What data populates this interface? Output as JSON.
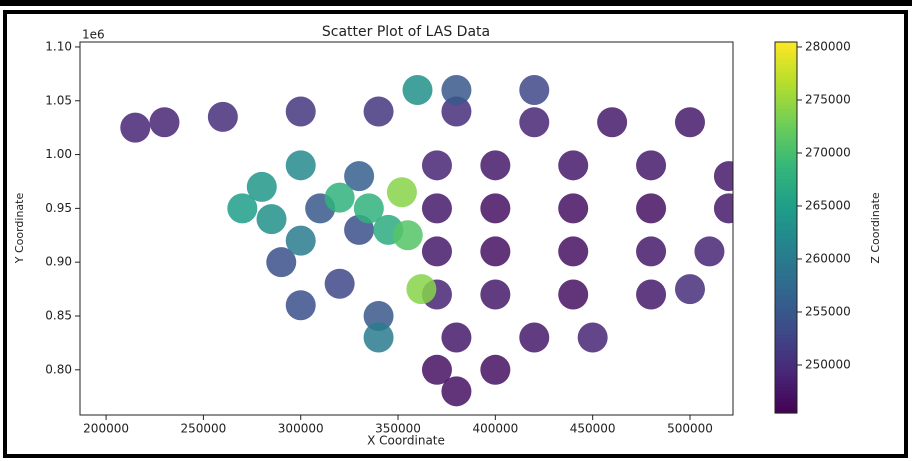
{
  "chart_data": {
    "type": "scatter",
    "title": "Scatter Plot of LAS Data",
    "x_label": "X Coordinate",
    "y_label": "Y Coordinate",
    "y_offset_label": "1e6",
    "colorbar_label": "Z Coordinate",
    "colormap": "viridis",
    "x": [
      420000,
      460000,
      500000,
      380000,
      340000,
      300000,
      260000,
      230000,
      215000,
      400000,
      440000,
      480000,
      520000,
      370000,
      400000,
      440000,
      480000,
      520000,
      370000,
      400000,
      440000,
      480000,
      510000,
      370000,
      400000,
      440000,
      480000,
      370000,
      500000,
      380000,
      420000,
      450000,
      370000,
      400000,
      380000,
      330000,
      320000,
      300000,
      340000,
      330000,
      310000,
      290000,
      380000,
      420000,
      300000,
      280000,
      270000,
      300000,
      285000,
      360000,
      340000,
      320000,
      335000,
      345000,
      352000,
      362000,
      355000
    ],
    "y": [
      1.03,
      1.03,
      1.03,
      1.04,
      1.04,
      1.04,
      1.035,
      1.03,
      1.025,
      0.99,
      0.99,
      0.99,
      0.98,
      0.99,
      0.95,
      0.95,
      0.95,
      0.95,
      0.95,
      0.91,
      0.91,
      0.91,
      0.91,
      0.91,
      0.87,
      0.87,
      0.87,
      0.87,
      0.875,
      0.83,
      0.83,
      0.83,
      0.8,
      0.8,
      0.78,
      0.93,
      0.88,
      0.86,
      0.85,
      0.98,
      0.95,
      0.9,
      1.06,
      1.06,
      0.99,
      0.97,
      0.95,
      0.92,
      0.94,
      1.06,
      0.83,
      0.96,
      0.95,
      0.93,
      0.965,
      0.875,
      0.925
    ],
    "z": [
      249000,
      248000,
      248000,
      250000,
      251000,
      251000,
      250000,
      249000,
      249000,
      248000,
      248000,
      248000,
      248000,
      249000,
      247000,
      247000,
      247000,
      248000,
      248000,
      247000,
      247000,
      248000,
      249000,
      248000,
      248000,
      247000,
      248000,
      249000,
      250000,
      248000,
      248000,
      249000,
      247000,
      247000,
      247000,
      254000,
      253000,
      254000,
      255000,
      256000,
      255000,
      254000,
      255000,
      253000,
      262000,
      264000,
      265000,
      260000,
      263000,
      263000,
      260000,
      268000,
      268000,
      267000,
      274000,
      274000,
      271000
    ],
    "xlim": [
      186600,
      522100
    ],
    "xticks": [
      200000,
      250000,
      300000,
      350000,
      400000,
      450000,
      500000
    ],
    "ylim": [
      0.758,
      1.1046
    ],
    "yticks": [
      {
        "value": 0.8,
        "label": "0.80"
      },
      0.85,
      {
        "value": 0.9,
        "label": "0.90"
      },
      0.95,
      {
        "value": 1.0,
        "label": "1.00"
      },
      1.05,
      {
        "value": 1.1,
        "label": "1.10"
      }
    ],
    "zlim": [
      245470,
      280470
    ],
    "zticks": [
      250000,
      255000,
      260000,
      265000,
      270000,
      275000,
      280000
    ]
  }
}
